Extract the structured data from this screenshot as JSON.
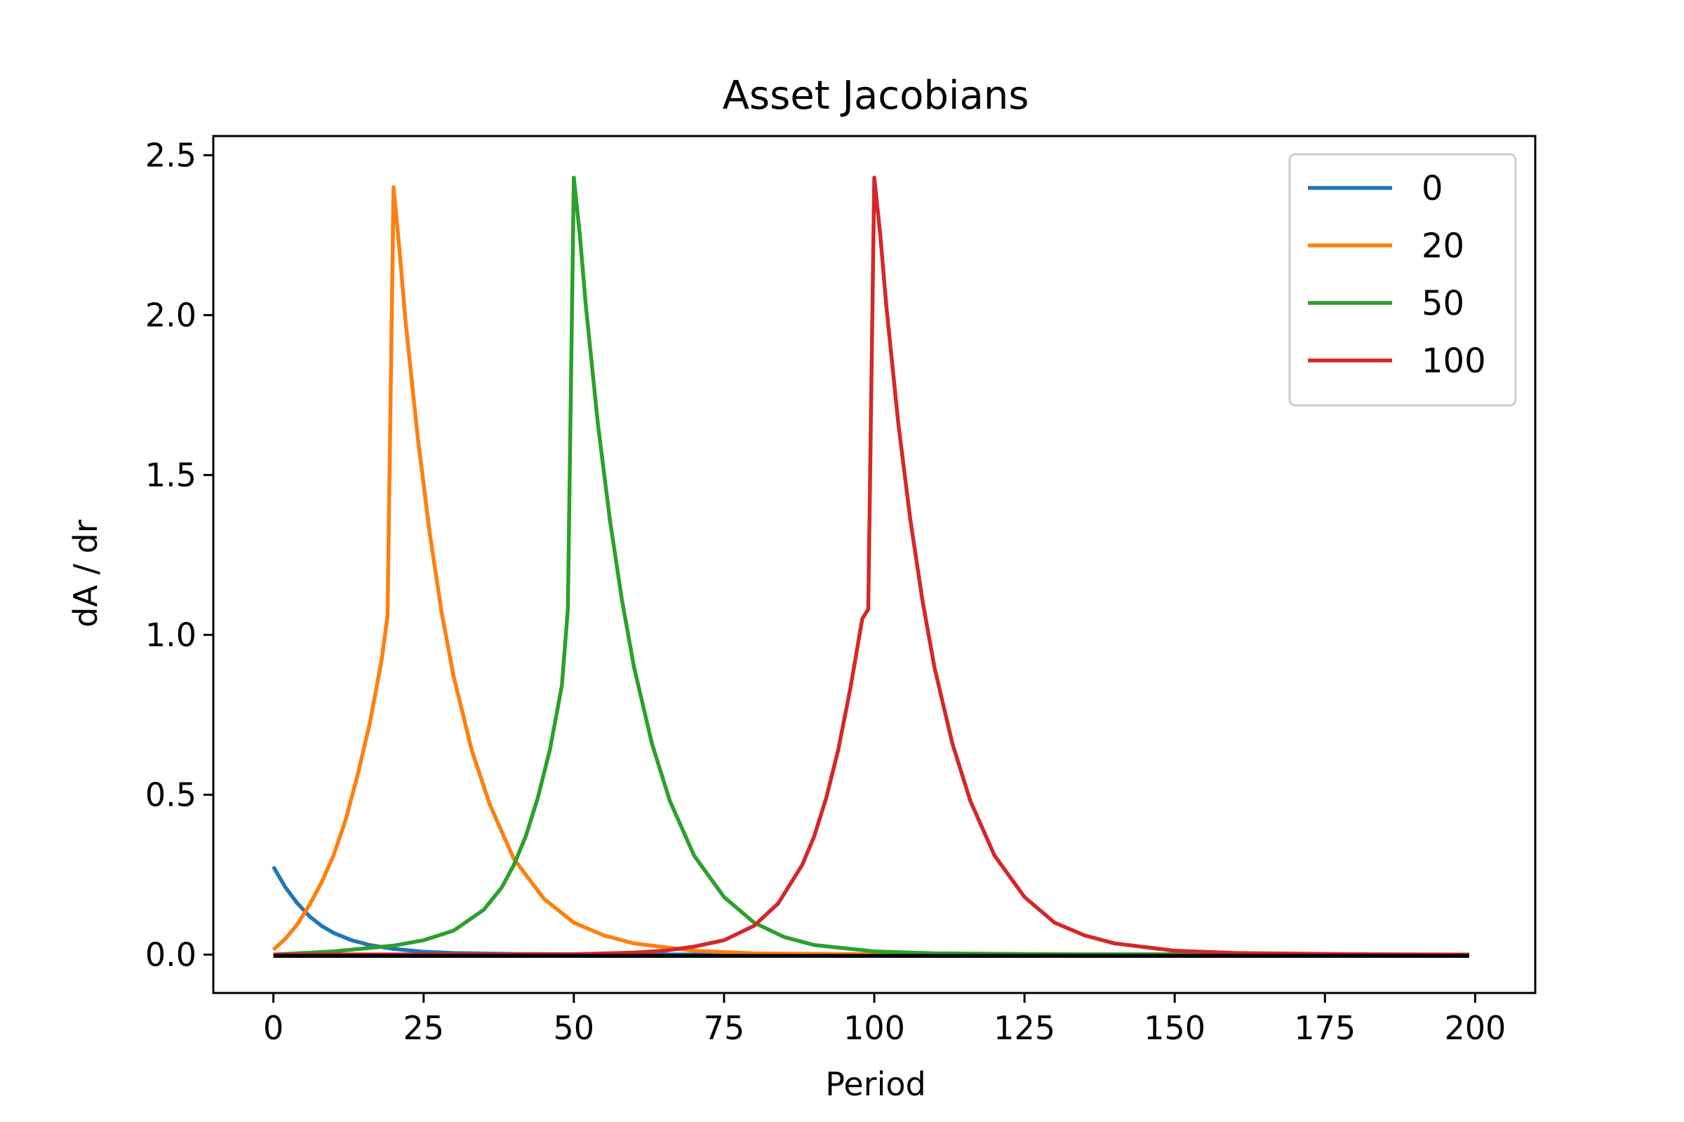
{
  "chart_data": {
    "type": "line",
    "title": "Asset Jacobians",
    "xlabel": "Period",
    "ylabel": "dA / dr",
    "xlim": [
      -10,
      210
    ],
    "ylim": [
      -0.12,
      2.56
    ],
    "x_ticks": [
      0,
      25,
      50,
      75,
      100,
      125,
      150,
      175,
      200
    ],
    "y_ticks": [
      0.0,
      0.5,
      1.0,
      1.5,
      2.0,
      2.5
    ],
    "x_tick_labels": [
      "0",
      "25",
      "50",
      "75",
      "100",
      "125",
      "150",
      "175",
      "200"
    ],
    "y_tick_labels": [
      "0.0",
      "0.5",
      "1.0",
      "1.5",
      "2.0",
      "2.5"
    ],
    "grid": false,
    "legend_position": "top-right",
    "series": [
      {
        "name": "0",
        "color": "#1f77b4",
        "points": [
          [
            0,
            0.275
          ],
          [
            2,
            0.21
          ],
          [
            4,
            0.16
          ],
          [
            6,
            0.12
          ],
          [
            8,
            0.09
          ],
          [
            10,
            0.068
          ],
          [
            13,
            0.045
          ],
          [
            16,
            0.03
          ],
          [
            20,
            0.018
          ],
          [
            25,
            0.009
          ],
          [
            30,
            0.005
          ],
          [
            40,
            0.002
          ],
          [
            60,
            0.0005
          ],
          [
            100,
            0.0
          ],
          [
            199,
            0.0
          ]
        ]
      },
      {
        "name": "20",
        "color": "#ff7f0e",
        "points": [
          [
            0,
            0.015
          ],
          [
            2,
            0.05
          ],
          [
            4,
            0.095
          ],
          [
            6,
            0.155
          ],
          [
            8,
            0.225
          ],
          [
            10,
            0.31
          ],
          [
            12,
            0.42
          ],
          [
            14,
            0.56
          ],
          [
            16,
            0.72
          ],
          [
            18,
            0.92
          ],
          [
            19,
            1.06
          ],
          [
            20,
            2.4
          ],
          [
            21,
            2.2
          ],
          [
            22,
            1.98
          ],
          [
            24,
            1.62
          ],
          [
            26,
            1.32
          ],
          [
            28,
            1.07
          ],
          [
            30,
            0.87
          ],
          [
            33,
            0.64
          ],
          [
            36,
            0.47
          ],
          [
            40,
            0.3
          ],
          [
            45,
            0.175
          ],
          [
            50,
            0.1
          ],
          [
            55,
            0.06
          ],
          [
            60,
            0.035
          ],
          [
            70,
            0.012
          ],
          [
            80,
            0.004
          ],
          [
            100,
            0.0008
          ],
          [
            199,
            0.0
          ]
        ]
      },
      {
        "name": "50",
        "color": "#2ca02c",
        "points": [
          [
            0,
            0.0
          ],
          [
            10,
            0.01
          ],
          [
            20,
            0.028
          ],
          [
            25,
            0.045
          ],
          [
            30,
            0.075
          ],
          [
            35,
            0.14
          ],
          [
            38,
            0.21
          ],
          [
            40,
            0.28
          ],
          [
            42,
            0.37
          ],
          [
            44,
            0.49
          ],
          [
            46,
            0.64
          ],
          [
            48,
            0.84
          ],
          [
            49,
            1.08
          ],
          [
            50,
            2.43
          ],
          [
            51,
            2.25
          ],
          [
            52,
            2.03
          ],
          [
            54,
            1.66
          ],
          [
            56,
            1.36
          ],
          [
            58,
            1.11
          ],
          [
            60,
            0.9
          ],
          [
            63,
            0.66
          ],
          [
            66,
            0.48
          ],
          [
            70,
            0.31
          ],
          [
            75,
            0.18
          ],
          [
            80,
            0.1
          ],
          [
            85,
            0.055
          ],
          [
            90,
            0.03
          ],
          [
            100,
            0.01
          ],
          [
            110,
            0.004
          ],
          [
            130,
            0.001
          ],
          [
            199,
            0.0
          ]
        ]
      },
      {
        "name": "100",
        "color": "#d62728",
        "points": [
          [
            0,
            0.0
          ],
          [
            50,
            0.001
          ],
          [
            60,
            0.006
          ],
          [
            65,
            0.012
          ],
          [
            70,
            0.025
          ],
          [
            75,
            0.045
          ],
          [
            80,
            0.09
          ],
          [
            84,
            0.16
          ],
          [
            88,
            0.28
          ],
          [
            90,
            0.37
          ],
          [
            92,
            0.49
          ],
          [
            94,
            0.64
          ],
          [
            96,
            0.83
          ],
          [
            98,
            1.05
          ],
          [
            99,
            1.08
          ],
          [
            100,
            2.43
          ],
          [
            101,
            2.25
          ],
          [
            102,
            2.03
          ],
          [
            104,
            1.66
          ],
          [
            106,
            1.36
          ],
          [
            108,
            1.11
          ],
          [
            110,
            0.9
          ],
          [
            113,
            0.66
          ],
          [
            116,
            0.48
          ],
          [
            120,
            0.31
          ],
          [
            125,
            0.18
          ],
          [
            130,
            0.1
          ],
          [
            135,
            0.06
          ],
          [
            140,
            0.035
          ],
          [
            150,
            0.012
          ],
          [
            160,
            0.005
          ],
          [
            180,
            0.001
          ],
          [
            199,
            0.0
          ]
        ]
      },
      {
        "color": "#000000",
        "points": [
          [
            0,
            -0.004
          ],
          [
            199,
            -0.004
          ]
        ]
      }
    ]
  }
}
